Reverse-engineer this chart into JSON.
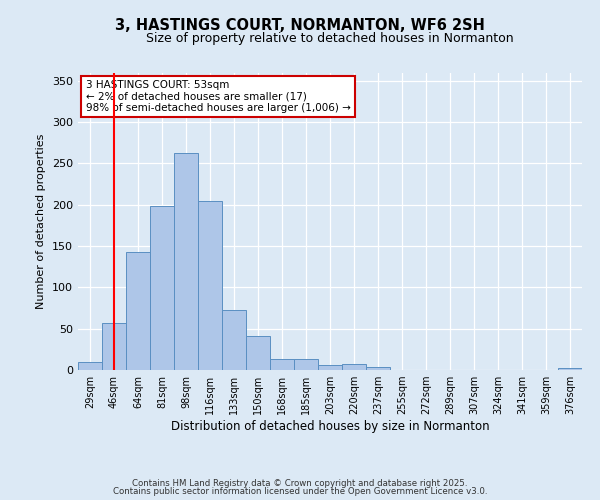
{
  "title": "3, HASTINGS COURT, NORMANTON, WF6 2SH",
  "subtitle": "Size of property relative to detached houses in Normanton",
  "xlabel": "Distribution of detached houses by size in Normanton",
  "ylabel": "Number of detached properties",
  "categories": [
    "29sqm",
    "46sqm",
    "64sqm",
    "81sqm",
    "98sqm",
    "116sqm",
    "133sqm",
    "150sqm",
    "168sqm",
    "185sqm",
    "203sqm",
    "220sqm",
    "237sqm",
    "255sqm",
    "272sqm",
    "289sqm",
    "307sqm",
    "324sqm",
    "341sqm",
    "359sqm",
    "376sqm"
  ],
  "values": [
    10,
    57,
    143,
    198,
    263,
    204,
    73,
    41,
    13,
    13,
    6,
    7,
    4,
    0,
    0,
    0,
    0,
    0,
    0,
    0,
    3
  ],
  "bar_color": "#aec6e8",
  "bar_edge_color": "#5a8fc2",
  "background_color": "#dce9f5",
  "red_line_x": 1,
  "ylim": [
    0,
    360
  ],
  "yticks": [
    0,
    50,
    100,
    150,
    200,
    250,
    300,
    350
  ],
  "annotation_text": "3 HASTINGS COURT: 53sqm\n← 2% of detached houses are smaller (17)\n98% of semi-detached houses are larger (1,006) →",
  "annotation_box_color": "#ffffff",
  "annotation_box_edge_color": "#cc0000",
  "footnote1": "Contains HM Land Registry data © Crown copyright and database right 2025.",
  "footnote2": "Contains public sector information licensed under the Open Government Licence v3.0."
}
